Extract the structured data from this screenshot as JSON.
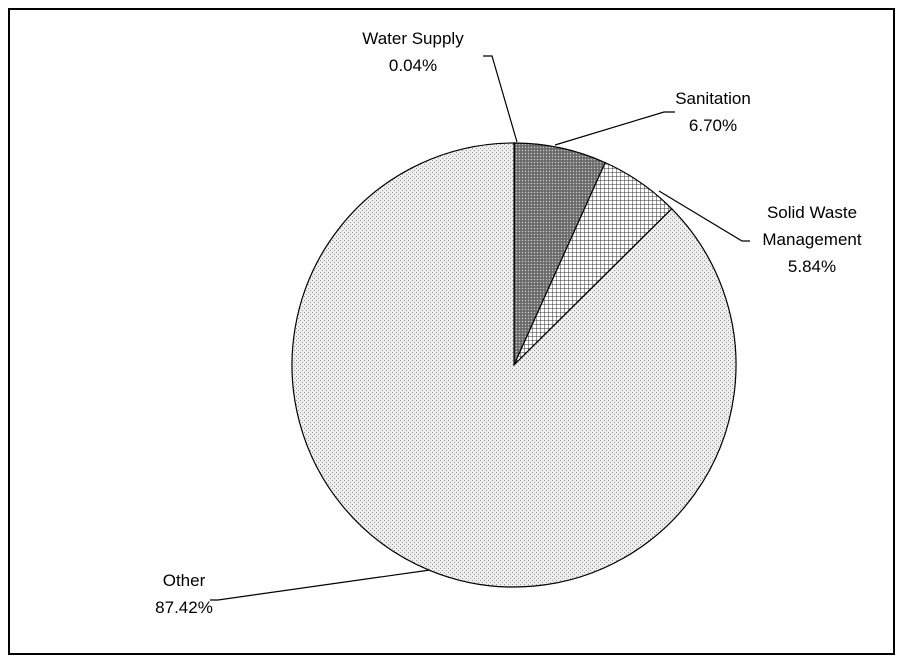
{
  "chart_data": {
    "type": "pie",
    "title": "",
    "start_angle_deg": 0,
    "direction": "clockwise",
    "legend": "none",
    "slices": [
      {
        "name": "Water Supply",
        "value": 0.04,
        "label": "0.04%",
        "fill": "#555555",
        "pattern": "dense-dots"
      },
      {
        "name": "Sanitation",
        "value": 6.7,
        "label": "6.70%",
        "fill": "#8a8a8a",
        "pattern": "dark-dots"
      },
      {
        "name": "Solid Waste Management",
        "name_lines": [
          "Solid Waste",
          "Management"
        ],
        "value": 5.84,
        "label": "5.84%",
        "fill": "#d0d0d0",
        "pattern": "crosshatch"
      },
      {
        "name": "Other",
        "value": 87.42,
        "label": "87.42%",
        "fill": "#e6e6e6",
        "pattern": "light-dots"
      }
    ]
  }
}
